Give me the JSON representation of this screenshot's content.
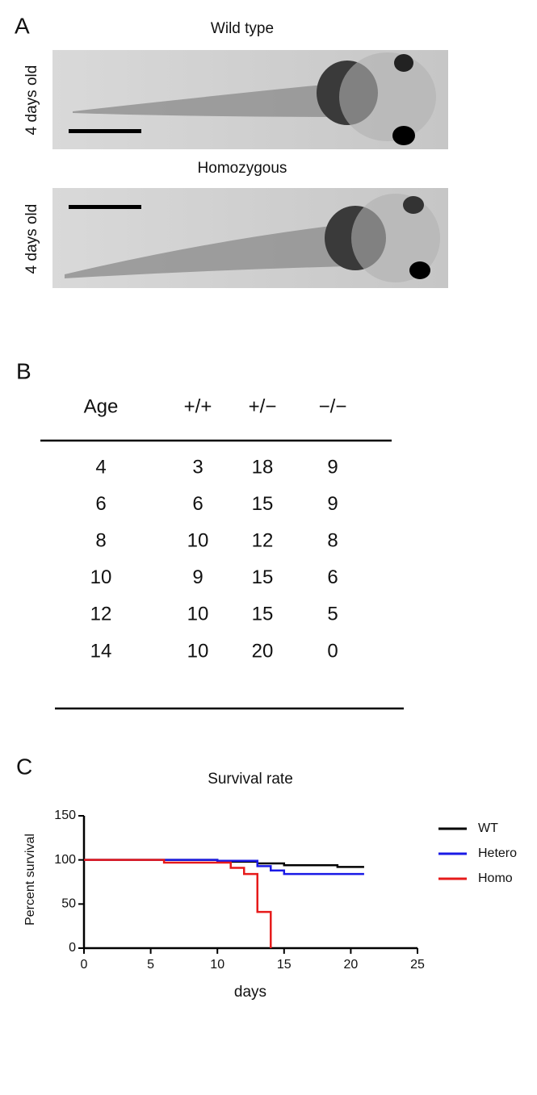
{
  "panel_a": {
    "label": "A",
    "top_title": "Wild type",
    "top_side": "4 days old",
    "bottom_title": "Homozygous",
    "bottom_side": "4 days old"
  },
  "panel_b": {
    "label": "B",
    "headers": [
      "Age",
      "+/+",
      "+/−",
      "−/−"
    ],
    "rows": [
      [
        4,
        3,
        18,
        9
      ],
      [
        6,
        6,
        15,
        9
      ],
      [
        8,
        10,
        12,
        8
      ],
      [
        10,
        9,
        15,
        6
      ],
      [
        12,
        10,
        15,
        5
      ],
      [
        14,
        10,
        20,
        0
      ]
    ]
  },
  "chart_data": {
    "type": "step",
    "label": "C",
    "title": "Survival rate",
    "x_label": "days",
    "y_label": "Percent survival",
    "xlim": [
      0,
      25
    ],
    "xticks": [
      0,
      5,
      10,
      15,
      20,
      25
    ],
    "ylim": [
      0,
      150
    ],
    "yticks": [
      0,
      50,
      100,
      150
    ],
    "series": [
      {
        "name": "WT",
        "color": "#000000",
        "x": [
          0,
          10,
          13,
          15,
          19,
          21
        ],
        "values": [
          100,
          98,
          96,
          94,
          92,
          92
        ]
      },
      {
        "name": "Hetero",
        "color": "#1a1ae6",
        "x": [
          0,
          10,
          13,
          14,
          15,
          21
        ],
        "values": [
          100,
          99,
          93,
          88,
          84,
          84
        ]
      },
      {
        "name": "Homo",
        "color": "#e61a1a",
        "x": [
          0,
          6,
          11,
          12,
          13,
          14
        ],
        "values": [
          100,
          97,
          91,
          84,
          41,
          0
        ]
      }
    ]
  }
}
